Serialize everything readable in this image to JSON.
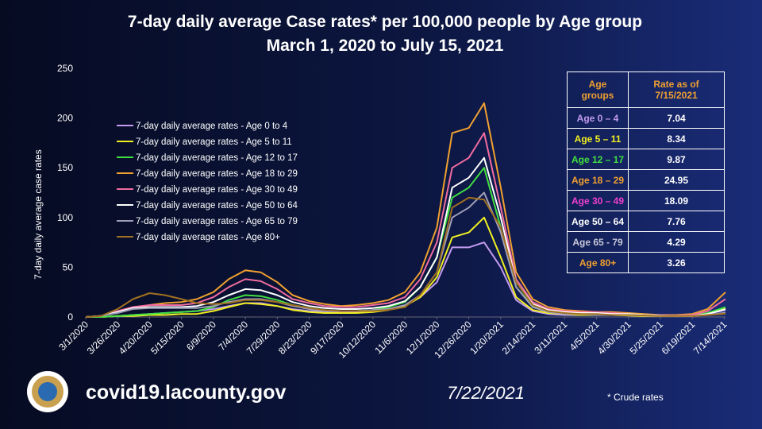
{
  "chart_data": {
    "type": "line",
    "title": "7-day daily average Case rates* per 100,000 people by Age group",
    "subtitle": "March 1, 2020 to July 15, 2021",
    "y_label": "7-day daily average case rates",
    "x": [
      "3/1/2020",
      "3/13/2020",
      "3/26/2020",
      "4/7/2020",
      "4/20/2020",
      "5/2/2020",
      "5/15/2020",
      "5/27/2020",
      "6/9/2020",
      "6/21/2020",
      "7/4/2020",
      "7/16/2020",
      "7/29/2020",
      "8/10/2020",
      "8/23/2020",
      "9/4/2020",
      "9/17/2020",
      "9/29/2020",
      "10/12/2020",
      "10/24/2020",
      "11/6/2020",
      "11/18/2020",
      "12/1/2020",
      "12/13/2020",
      "12/26/2020",
      "1/7/2021",
      "1/20/2021",
      "2/1/2021",
      "2/14/2021",
      "2/26/2021",
      "3/11/2021",
      "3/23/2021",
      "4/5/2021",
      "4/17/2021",
      "4/30/2021",
      "5/12/2021",
      "5/25/2021",
      "6/6/2021",
      "6/19/2021",
      "7/1/2021",
      "7/15/2021"
    ],
    "xlim": [
      "3/1/2020",
      "7/15/2021"
    ],
    "xticks": [
      "3/1/2020",
      "3/26/2020",
      "4/20/2020",
      "5/15/2020",
      "6/9/2020",
      "7/4/2020",
      "7/29/2020",
      "8/23/2020",
      "9/17/2020",
      "10/12/2020",
      "11/6/2020",
      "12/1/2020",
      "12/26/2020",
      "1/20/2021",
      "2/14/2021",
      "3/11/2021",
      "4/5/2021",
      "4/30/2021",
      "5/25/2021",
      "6/19/2021",
      "7/14/2021"
    ],
    "ylim": [
      0,
      250
    ],
    "yticks": [
      0,
      50,
      100,
      150,
      200,
      250
    ],
    "grid": false,
    "series": [
      {
        "name": "7-day daily average rates - Age 0 to 4",
        "color": "#c39bf0",
        "values": [
          0,
          0,
          1,
          2,
          3,
          4,
          5,
          6,
          8,
          11,
          14,
          14,
          11,
          8,
          6,
          5,
          5,
          5,
          6,
          8,
          11,
          20,
          35,
          70,
          70,
          75,
          50,
          17,
          6,
          3,
          2,
          2,
          2,
          2,
          1.5,
          1,
          1,
          1,
          1,
          3,
          7.04
        ]
      },
      {
        "name": "7-day daily average rates - Age 5 to 11",
        "color": "#f0f020",
        "values": [
          0,
          0,
          1,
          1,
          2,
          2,
          3,
          3,
          6,
          10,
          14,
          13,
          11,
          7,
          5,
          4,
          4,
          4,
          5,
          7,
          11,
          20,
          40,
          80,
          85,
          100,
          60,
          20,
          7,
          4,
          3,
          2,
          2,
          2,
          1.5,
          1,
          1,
          1,
          1,
          3,
          8.34
        ]
      },
      {
        "name": "7-day daily average rates - Age 12 to 17",
        "color": "#40e040",
        "values": [
          0,
          0,
          1,
          2,
          3,
          4,
          5,
          6,
          10,
          17,
          22,
          21,
          17,
          12,
          9,
          7,
          6,
          6,
          7,
          10,
          15,
          30,
          60,
          120,
          130,
          150,
          90,
          30,
          11,
          6,
          4,
          3,
          3,
          3,
          2,
          2,
          1.5,
          1,
          1.5,
          4,
          9.87
        ]
      },
      {
        "name": "7-day daily average rates - Age 18 to 29",
        "color": "#f0a030",
        "values": [
          0,
          1,
          5,
          9,
          12,
          14,
          15,
          18,
          25,
          38,
          47,
          45,
          35,
          22,
          16,
          13,
          11,
          12,
          14,
          17,
          25,
          45,
          90,
          185,
          190,
          215,
          130,
          45,
          18,
          10,
          7,
          6,
          5,
          5,
          4,
          3,
          2,
          2,
          3,
          8,
          24.95
        ]
      },
      {
        "name": "7-day daily average rates - Age 30 to 49",
        "color": "#f06ca0",
        "values": [
          0,
          1,
          6,
          10,
          12,
          12,
          12,
          14,
          20,
          30,
          38,
          36,
          28,
          18,
          14,
          11,
          10,
          10,
          12,
          14,
          20,
          38,
          75,
          150,
          160,
          185,
          110,
          38,
          15,
          8,
          6,
          5,
          5,
          4,
          3,
          2,
          2,
          1.5,
          2,
          6,
          18.09
        ]
      },
      {
        "name": "7-day daily average rates - Age 50 to 64",
        "color": "#ffffff",
        "values": [
          0,
          1,
          5,
          9,
          10,
          10,
          10,
          11,
          15,
          22,
          28,
          27,
          22,
          15,
          11,
          9,
          8,
          8,
          9,
          11,
          16,
          30,
          60,
          130,
          140,
          160,
          100,
          35,
          13,
          7,
          5,
          4,
          4,
          3,
          3,
          2,
          1.5,
          1,
          1,
          3,
          7.76
        ]
      },
      {
        "name": "7-day daily average rates - Age 65 to 79",
        "color": "#a0a0b8",
        "values": [
          0,
          1,
          4,
          8,
          9,
          9,
          9,
          9,
          11,
          15,
          18,
          18,
          15,
          11,
          8,
          6,
          6,
          6,
          7,
          8,
          12,
          22,
          45,
          100,
          110,
          125,
          85,
          30,
          10,
          5,
          3,
          3,
          2,
          2,
          2,
          1.5,
          1,
          1,
          1,
          2,
          4.29
        ]
      },
      {
        "name": "7-day daily average rates - Age 80+",
        "color": "#a07020",
        "values": [
          0,
          1,
          8,
          18,
          24,
          22,
          18,
          14,
          13,
          14,
          17,
          17,
          15,
          12,
          9,
          7,
          6,
          6,
          6,
          7,
          10,
          22,
          45,
          110,
          120,
          118,
          90,
          35,
          12,
          6,
          4,
          3,
          3,
          2,
          2,
          1.5,
          1,
          1,
          1,
          2,
          3.26
        ]
      }
    ],
    "table": {
      "header": [
        "Age groups",
        "Rate as of 7/15/2021"
      ],
      "rows": [
        [
          "Age 0 – 4",
          7.04
        ],
        [
          "Age 5 – 11",
          8.34
        ],
        [
          "Age 12 – 17",
          9.87
        ],
        [
          "Age 18 – 29",
          24.95
        ],
        [
          "Age 30 – 49",
          18.09
        ],
        [
          "Age 50 – 64",
          7.76
        ],
        [
          "Age 65 - 79",
          4.29
        ],
        [
          "Age 80+",
          3.26
        ]
      ],
      "colors": [
        "#c39bf0",
        "#f0f020",
        "#40e040",
        "#f0a030",
        "#f040d0",
        "#ffffff",
        "#c8c8d8",
        "#f0a030"
      ]
    },
    "website": "covid19.lacounty.gov",
    "date": "7/22/2021",
    "footnote": "* Crude rates"
  }
}
